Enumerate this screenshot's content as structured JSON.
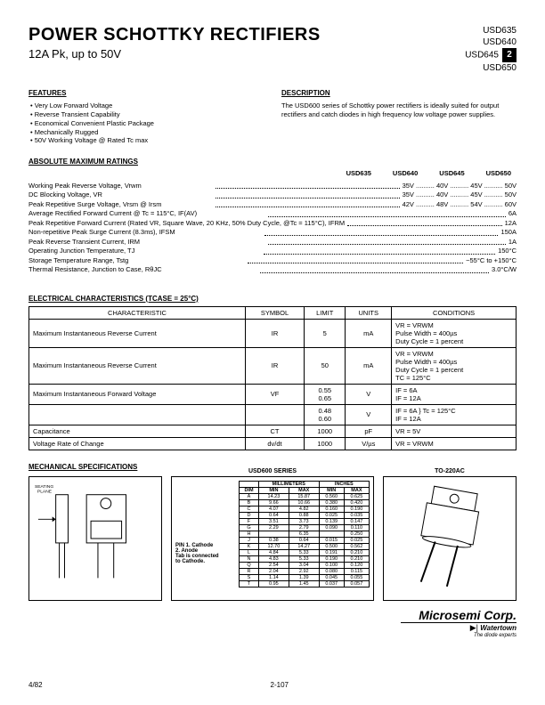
{
  "header": {
    "title": "POWER SCHOTTKY RECTIFIERS",
    "subtitle": "12A Pk, up to 50V",
    "parts": [
      "USD635",
      "USD640",
      "USD645",
      "USD650"
    ],
    "badge": "2"
  },
  "features": {
    "heading": "FEATURES",
    "items": [
      "Very Low Forward Voltage",
      "Reverse Transient Capability",
      "Economical Convenient Plastic Package",
      "Mechanically Rugged",
      "50V Working Voltage @ Rated Tc max"
    ]
  },
  "description": {
    "heading": "DESCRIPTION",
    "text": "The USD600 series of Schottky power rectifiers is ideally suited for output rectifiers and catch diodes in high frequency low voltage power supplies."
  },
  "ratings": {
    "heading": "ABSOLUTE MAXIMUM RATINGS",
    "columns": [
      "USD635",
      "USD640",
      "USD645",
      "USD650"
    ],
    "rows": [
      {
        "label": "Working Peak Reverse Voltage, Vrwm",
        "vals": "35V .......... 40V .......... 45V .......... 50V"
      },
      {
        "label": "DC Blocking Voltage, VR",
        "vals": "35V .......... 40V .......... 45V .......... 50V"
      },
      {
        "label": "Peak Repetitive Surge Voltage, Vrsm @ Irsm",
        "vals": "42V .......... 48V .......... 54V .......... 60V"
      },
      {
        "label": "Average Rectified Forward Current @ Tc = 115°C, IF(AV)",
        "vals": "6A"
      },
      {
        "label": "Peak Repetitive Forward Current (Rated VR, Square Wave, 20 KHz, 50% Duty Cycle, @Tc = 115°C), IFRM",
        "vals": "12A"
      },
      {
        "label": "Non-repetitive Peak Surge Current (8.3ms), IFSM",
        "vals": "150A"
      },
      {
        "label": "Peak Reverse Transient Current, IRM",
        "vals": "1A"
      },
      {
        "label": "Operating Junction Temperature, TJ",
        "vals": "150°C"
      },
      {
        "label": "Storage Temperature Range, Tstg",
        "vals": "−55°C to +150°C"
      },
      {
        "label": "Thermal Resistance, Junction to Case, RθJC",
        "vals": "3.0°C/W"
      }
    ]
  },
  "elec": {
    "heading": "ELECTRICAL CHARACTERISTICS (TCASE = 25°C)",
    "columns": [
      "CHARACTERISTIC",
      "SYMBOL",
      "LIMIT",
      "UNITS",
      "CONDITIONS"
    ],
    "rows": [
      [
        "Maximum Instantaneous Reverse Current",
        "IR",
        "5",
        "mA",
        "VR = VRWM\nPulse Width = 400µs\nDuty Cycle = 1 percent"
      ],
      [
        "Maximum Instantaneous Reverse Current",
        "IR",
        "50",
        "mA",
        "VR = VRWM\nPulse Width = 400µs\nDuty Cycle = 1 percent\nTC = 125°C"
      ],
      [
        "Maximum Instantaneous Forward Voltage",
        "VF",
        "0.55\n0.65",
        "V",
        "IF = 6A\nIF = 12A"
      ],
      [
        "",
        "",
        "0.48\n0.60",
        "V",
        "IF = 6A   }  Tc = 125°C\nIF = 12A"
      ],
      [
        "Capacitance",
        "CT",
        "1000",
        "pF",
        "VR = 5V"
      ],
      [
        "Voltage Rate of Change",
        "dv/dt",
        "1000",
        "V/µs",
        "VR = VRWM"
      ]
    ]
  },
  "mech": {
    "heading": "MECHANICAL SPECIFICATIONS",
    "seating": "SEATING PLANE",
    "series": "USD600 SERIES",
    "package": "TO-220AC",
    "pin_note": "PIN 1. Cathode\n      2. Anode\nTab is connected\nto Cathode.",
    "dim": {
      "head1": "MILLIMETERS",
      "head2": "INCHES",
      "sub": [
        "DIM",
        "MIN",
        "MAX",
        "MIN",
        "MAX"
      ],
      "rows": [
        [
          "A",
          "14.23",
          "15.87",
          "0.560",
          "0.625"
        ],
        [
          "B",
          "9.66",
          "10.66",
          "0.380",
          "0.420"
        ],
        [
          "C",
          "4.07",
          "4.82",
          "0.160",
          "0.190"
        ],
        [
          "D",
          "0.64",
          "0.88",
          "0.025",
          "0.035"
        ],
        [
          "F",
          "3.51",
          "3.73",
          "0.139",
          "0.147"
        ],
        [
          "G",
          "2.29",
          "2.79",
          "0.090",
          "0.110"
        ],
        [
          "H",
          "",
          "6.35",
          "",
          "0.250"
        ],
        [
          "J",
          "0.38",
          "0.64",
          "0.015",
          "0.025"
        ],
        [
          "K",
          "12.70",
          "14.27",
          "0.500",
          "0.562"
        ],
        [
          "L",
          "4.84",
          "5.33",
          "0.191",
          "0.210"
        ],
        [
          "N",
          "4.83",
          "5.33",
          "0.190",
          "0.210"
        ],
        [
          "Q",
          "2.54",
          "3.04",
          "0.100",
          "0.120"
        ],
        [
          "R",
          "2.04",
          "2.92",
          "0.080",
          "0.115"
        ],
        [
          "S",
          "1.14",
          "1.39",
          "0.045",
          "0.055"
        ],
        [
          "T",
          "0.95",
          "1.45",
          "0.037",
          "0.057"
        ]
      ]
    }
  },
  "logo": {
    "brand": "Microsemi Corp.",
    "loc": "Watertown",
    "tag": "The diode experts"
  },
  "footer": {
    "left": "4/82",
    "center": "2-107"
  }
}
